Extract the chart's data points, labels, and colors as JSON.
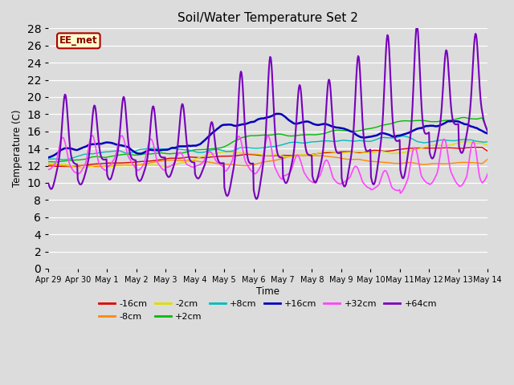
{
  "title": "Soil/Water Temperature Set 2",
  "xlabel": "Time",
  "ylabel": "Temperature (C)",
  "ylim": [
    0,
    28
  ],
  "yticks": [
    0,
    2,
    4,
    6,
    8,
    10,
    12,
    14,
    16,
    18,
    20,
    22,
    24,
    26,
    28
  ],
  "bg_color": "#dcdcdc",
  "series_colors": {
    "-16cm": "#dd0000",
    "-8cm": "#ff8800",
    "-2cm": "#dddd00",
    "+2cm": "#00bb00",
    "+8cm": "#00bbbb",
    "+16cm": "#0000bb",
    "+32cm": "#ff44ff",
    "+64cm": "#7700bb"
  },
  "series_lw": {
    "-16cm": 1.0,
    "-8cm": 1.0,
    "-2cm": 1.0,
    "+2cm": 1.0,
    "+8cm": 1.0,
    "+16cm": 1.8,
    "+32cm": 1.2,
    "+64cm": 1.5
  },
  "watermark": "EE_met",
  "watermark_bg": "#ffffcc",
  "watermark_border": "#aa0000",
  "tick_labels": [
    "Apr 29",
    "Apr 30",
    "May 1",
    "May 2",
    "May 3",
    "May 4",
    "May 5",
    "May 6",
    "May 7",
    "May 8",
    "May 9",
    "May 10",
    "May 11",
    "May 12",
    "May 13",
    "May 14"
  ],
  "figsize": [
    6.4,
    4.8
  ],
  "dpi": 100
}
